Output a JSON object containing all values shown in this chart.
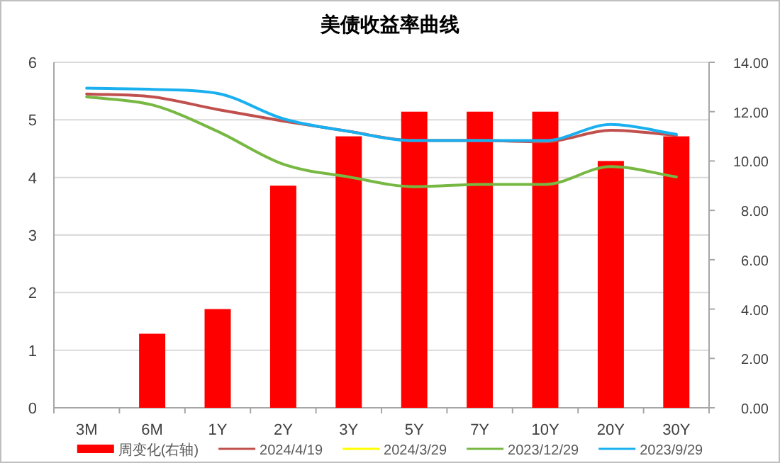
{
  "chart_data": {
    "type": "line",
    "title": "美债收益率曲线",
    "categories": [
      "3M",
      "6M",
      "1Y",
      "2Y",
      "3Y",
      "5Y",
      "7Y",
      "10Y",
      "20Y",
      "30Y"
    ],
    "series": [
      {
        "name": "周变化(右轴)",
        "type": "bar",
        "axis": "y2",
        "color": "#ff0000",
        "values": [
          null,
          3.0,
          4.0,
          9.0,
          11.0,
          12.0,
          12.0,
          12.0,
          10.0,
          11.0
        ]
      },
      {
        "name": "2024/4/19",
        "color": "#c0504d",
        "values": [
          5.45,
          5.4,
          5.18,
          4.98,
          4.8,
          4.64,
          4.64,
          4.62,
          4.82,
          4.73
        ]
      },
      {
        "name": "2024/3/29",
        "color": "#ffff00",
        "values": [
          null,
          null,
          null,
          null,
          null,
          null,
          null,
          null,
          null,
          null
        ]
      },
      {
        "name": "2023/12/29",
        "color": "#77b843",
        "values": [
          5.4,
          5.26,
          4.8,
          4.23,
          4.01,
          3.84,
          3.88,
          3.88,
          4.19,
          4.01
        ]
      },
      {
        "name": "2023/9/29",
        "color": "#1ab0f0",
        "values": [
          5.55,
          5.53,
          5.46,
          5.02,
          4.8,
          4.64,
          4.64,
          4.64,
          4.92,
          4.75
        ]
      }
    ],
    "ylim": [
      0,
      6
    ],
    "yticks": [
      0,
      1,
      2,
      3,
      4,
      5,
      6
    ],
    "y2lim": [
      0,
      14
    ],
    "y2ticks": [
      {
        "value": 0,
        "label": "0.00"
      },
      {
        "value": 2,
        "label": "2.00"
      },
      {
        "value": 4,
        "label": "4.00"
      },
      {
        "value": 6,
        "label": "6.00"
      },
      {
        "value": 8,
        "label": "8.00"
      },
      {
        "value": 10,
        "label": "10.00"
      },
      {
        "value": 12,
        "label": "12.00"
      },
      {
        "value": 14,
        "label": "14.00"
      }
    ],
    "grid": "y",
    "legend": "bottom",
    "marker": "none",
    "line_style": "solid"
  }
}
